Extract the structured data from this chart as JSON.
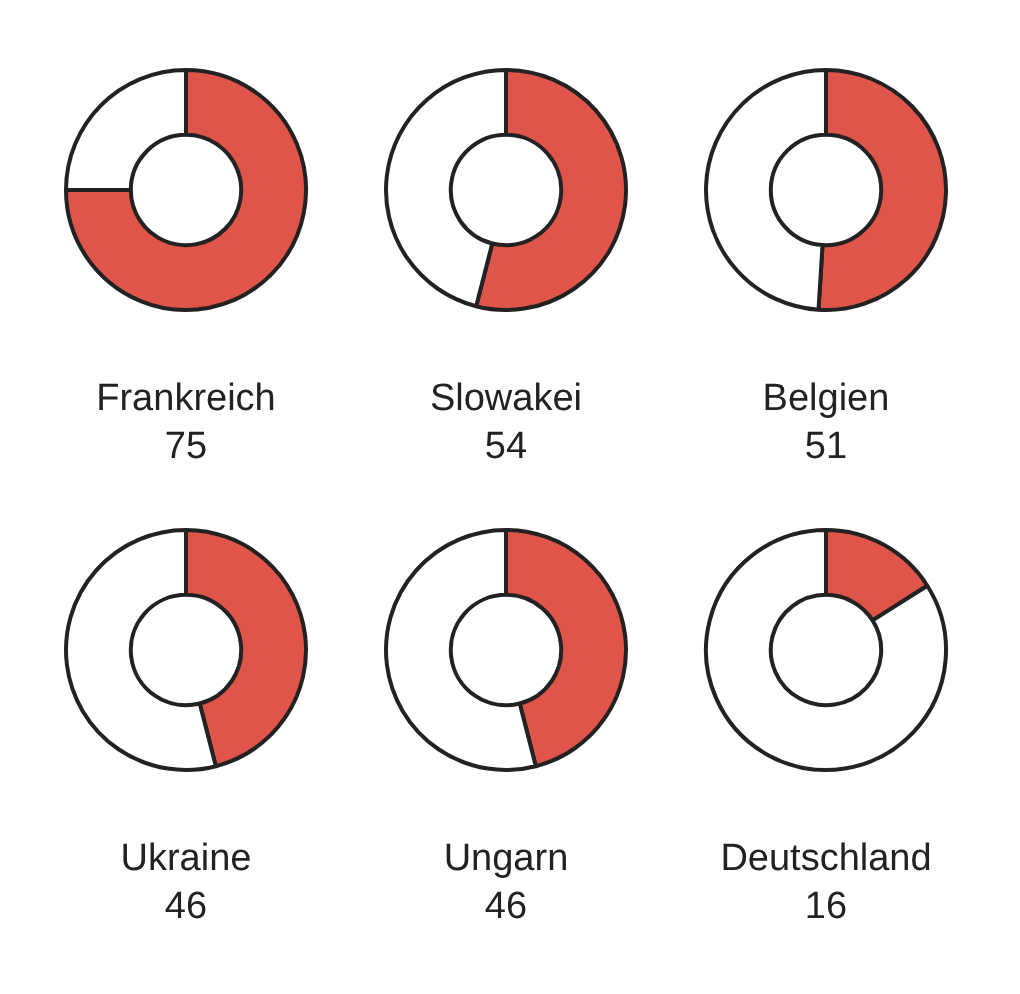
{
  "chart_data": [
    {
      "type": "donut",
      "title": "Frankreich",
      "categories": [
        null,
        null
      ],
      "values": [
        75,
        25
      ],
      "colors": [
        "#e0554a",
        "#ffffff"
      ],
      "annotations": [
        "75"
      ]
    },
    {
      "type": "donut",
      "title": "Slowakei",
      "categories": [
        null,
        null
      ],
      "values": [
        54,
        46
      ],
      "colors": [
        "#e0554a",
        "#ffffff"
      ],
      "annotations": [
        "54"
      ]
    },
    {
      "type": "donut",
      "title": "Belgien",
      "categories": [
        null,
        null
      ],
      "values": [
        51,
        49
      ],
      "colors": [
        "#e0554a",
        "#ffffff"
      ],
      "annotations": [
        "51"
      ]
    },
    {
      "type": "donut",
      "title": "Ukraine",
      "categories": [
        null,
        null
      ],
      "values": [
        46,
        54
      ],
      "colors": [
        "#e0554a",
        "#ffffff"
      ],
      "annotations": [
        "46"
      ]
    },
    {
      "type": "donut",
      "title": "Ungarn",
      "categories": [
        null,
        null
      ],
      "values": [
        46,
        54
      ],
      "colors": [
        "#e0554a",
        "#ffffff"
      ],
      "annotations": [
        "46"
      ]
    },
    {
      "type": "donut",
      "title": "Deutschland",
      "categories": [
        null,
        null
      ],
      "values": [
        16,
        84
      ],
      "colors": [
        "#e0554a",
        "#ffffff"
      ],
      "annotations": [
        "16"
      ]
    }
  ]
}
